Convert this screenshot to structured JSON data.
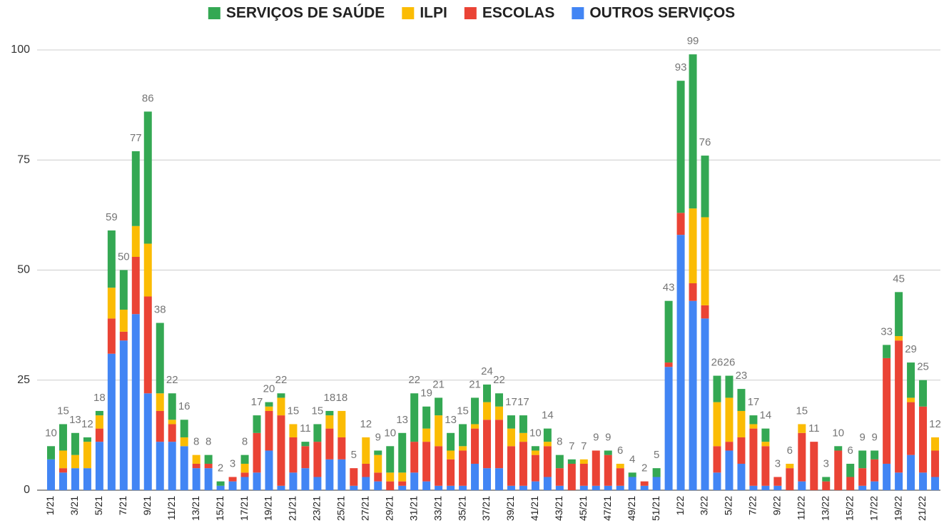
{
  "chart_data": {
    "type": "stacked-bar",
    "categories": [
      "1/21",
      null,
      "3/21",
      null,
      "5/21",
      null,
      "7/21",
      null,
      "9/21",
      null,
      "11/21",
      null,
      "13/21",
      null,
      "15/21",
      null,
      "17/21",
      null,
      "19/21",
      null,
      "21/21",
      null,
      "23/21",
      null,
      "25/21",
      null,
      "27/21",
      null,
      "29/21",
      null,
      "31/21",
      null,
      "33/21",
      null,
      "35/21",
      null,
      "37/21",
      null,
      "39/21",
      null,
      "41/21",
      null,
      "43/21",
      null,
      "45/21",
      null,
      "47/21",
      null,
      "49/21",
      null,
      "51/21",
      null,
      "1/22",
      null,
      "3/22",
      null,
      "5/22",
      null,
      "7/22",
      null,
      "9/22",
      null,
      "11/22",
      null,
      "13/22",
      null,
      "15/22",
      null,
      "17/22",
      null,
      "19/22",
      null,
      "21/22",
      null
    ],
    "series": [
      {
        "name": "OUTROS SERVIÇOS",
        "color": "#4285f4",
        "values": [
          7,
          4,
          5,
          5,
          11,
          31,
          34,
          40,
          22,
          11,
          11,
          10,
          5,
          5,
          1,
          2,
          3,
          4,
          9,
          1,
          4,
          5,
          3,
          7,
          7,
          1,
          3,
          2,
          0,
          1,
          4,
          2,
          1,
          1,
          1,
          6,
          5,
          5,
          1,
          1,
          2,
          3,
          1,
          0,
          1,
          1,
          1,
          1,
          3,
          1,
          3,
          28,
          58,
          43,
          39,
          4,
          9,
          6,
          1,
          1,
          1,
          0,
          2,
          0,
          0,
          0,
          0,
          1,
          2,
          6,
          4,
          8,
          4,
          3
        ]
      },
      {
        "name": "ESCOLAS",
        "color": "#ea4335",
        "values": [
          0,
          1,
          0,
          0,
          3,
          8,
          2,
          13,
          22,
          7,
          4,
          0,
          1,
          1,
          0,
          1,
          1,
          9,
          9,
          16,
          8,
          5,
          8,
          7,
          5,
          4,
          3,
          2,
          2,
          1,
          7,
          9,
          9,
          6,
          8,
          8,
          11,
          11,
          9,
          10,
          6,
          7,
          4,
          6,
          5,
          8,
          7,
          4,
          0,
          1,
          0,
          1,
          5,
          4,
          3,
          6,
          2,
          6,
          13,
          9,
          2,
          5,
          11,
          11,
          2,
          9,
          3,
          4,
          5,
          24,
          30,
          12,
          15,
          6
        ]
      },
      {
        "name": "ILPI",
        "color": "#fbbc04",
        "values": [
          0,
          4,
          3,
          6,
          3,
          7,
          5,
          7,
          12,
          4,
          1,
          2,
          2,
          0,
          0,
          0,
          2,
          0,
          1,
          4,
          3,
          0,
          0,
          3,
          6,
          0,
          6,
          4,
          2,
          2,
          0,
          3,
          7,
          2,
          1,
          1,
          4,
          3,
          4,
          2,
          1,
          1,
          0,
          0,
          1,
          0,
          0,
          1,
          0,
          0,
          0,
          0,
          0,
          17,
          20,
          10,
          10,
          6,
          1,
          1,
          0,
          1,
          2,
          0,
          0,
          0,
          0,
          0,
          0,
          0,
          1,
          1,
          0,
          3
        ]
      },
      {
        "name": "SERVIÇOS DE SAÚDE",
        "color": "#34a853",
        "values": [
          3,
          6,
          5,
          1,
          1,
          13,
          9,
          17,
          30,
          16,
          6,
          4,
          0,
          2,
          1,
          0,
          2,
          4,
          1,
          1,
          0,
          1,
          4,
          1,
          0,
          0,
          0,
          1,
          6,
          9,
          11,
          5,
          4,
          4,
          5,
          6,
          4,
          3,
          3,
          4,
          1,
          3,
          3,
          1,
          0,
          0,
          1,
          0,
          1,
          0,
          2,
          14,
          30,
          35,
          14,
          6,
          5,
          5,
          2,
          3,
          0,
          0,
          0,
          0,
          1,
          1,
          3,
          4,
          2,
          3,
          10,
          8,
          6,
          0
        ]
      }
    ],
    "totals": [
      10,
      15,
      13,
      12,
      18,
      59,
      50,
      77,
      86,
      38,
      22,
      16,
      8,
      8,
      2,
      3,
      8,
      17,
      20,
      22,
      15,
      11,
      15,
      18,
      18,
      5,
      12,
      9,
      10,
      13,
      22,
      19,
      21,
      13,
      15,
      21,
      24,
      22,
      17,
      17,
      10,
      14,
      8,
      7,
      7,
      9,
      9,
      6,
      4,
      2,
      5,
      43,
      93,
      99,
      76,
      26,
      26,
      23,
      17,
      14,
      3,
      6,
      15,
      11,
      3,
      10,
      6,
      9,
      9,
      33,
      45,
      29,
      25,
      12
    ],
    "ylim": [
      0,
      100
    ],
    "yticks": [
      0,
      25,
      50,
      75,
      100
    ],
    "grid": true,
    "legend": "top"
  }
}
